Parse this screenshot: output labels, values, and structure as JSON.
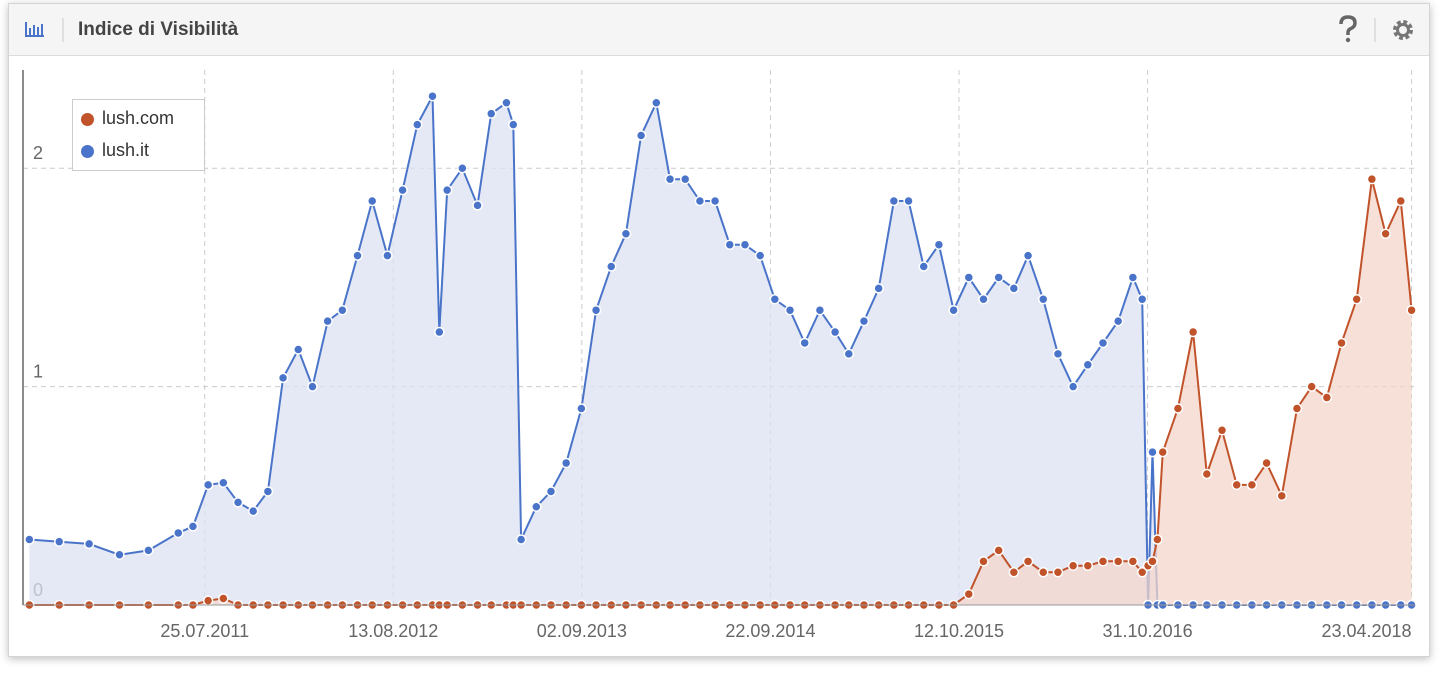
{
  "chart_data": {
    "type": "area",
    "title": "Indice di Visibilità",
    "x": [
      "01.08.2010",
      "01.10.2010",
      "01.12.2010",
      "01.02.2011",
      "01.04.2011",
      "01.06.2011",
      "01.07.2011",
      "01.08.2011",
      "01.09.2011",
      "01.10.2011",
      "01.11.2011",
      "01.12.2011",
      "01.01.2012",
      "01.02.2012",
      "01.03.2012",
      "01.04.2012",
      "01.05.2012",
      "01.06.2012",
      "01.07.2012",
      "01.08.2012",
      "01.09.2012",
      "01.10.2012",
      "01.11.2012",
      "15.11.2012",
      "01.12.2012",
      "01.01.2013",
      "01.02.2013",
      "01.03.2013",
      "01.04.2013",
      "15.04.2013",
      "01.05.2013",
      "01.06.2013",
      "01.07.2013",
      "01.08.2013",
      "01.09.2013",
      "01.10.2013",
      "01.11.2013",
      "01.12.2013",
      "01.01.2014",
      "01.02.2014",
      "01.03.2014",
      "01.04.2014",
      "01.05.2014",
      "01.06.2014",
      "01.07.2014",
      "01.08.2014",
      "01.09.2014",
      "01.10.2014",
      "01.11.2014",
      "01.12.2014",
      "01.01.2015",
      "01.02.2015",
      "01.03.2015",
      "01.04.2015",
      "01.05.2015",
      "01.06.2015",
      "01.07.2015",
      "01.08.2015",
      "01.09.2015",
      "01.10.2015",
      "01.11.2015",
      "01.12.2015",
      "01.01.2016",
      "01.02.2016",
      "01.03.2016",
      "01.04.2016",
      "01.05.2016",
      "01.06.2016",
      "01.07.2016",
      "01.08.2016",
      "01.09.2016",
      "01.10.2016",
      "20.10.2016",
      "01.11.2016",
      "10.11.2016",
      "20.11.2016",
      "01.12.2016",
      "01.01.2017",
      "01.02.2017",
      "01.03.2017",
      "01.04.2017",
      "01.05.2017",
      "01.06.2017",
      "01.07.2017",
      "01.08.2017",
      "01.09.2017",
      "01.10.2017",
      "01.11.2017",
      "01.12.2017",
      "01.01.2018",
      "01.02.2018",
      "01.03.2018",
      "01.04.2018",
      "23.04.2018"
    ],
    "series": [
      {
        "name": "lush.com",
        "color": "#c1532b",
        "fill": "#f3d6cb",
        "values": [
          0,
          0,
          0,
          0,
          0,
          0,
          0,
          0.02,
          0.03,
          0,
          0,
          0,
          0,
          0,
          0,
          0,
          0,
          0,
          0,
          0,
          0,
          0,
          0,
          0,
          0,
          0,
          0,
          0,
          0,
          0,
          0,
          0,
          0,
          0,
          0,
          0,
          0,
          0,
          0,
          0,
          0,
          0,
          0,
          0,
          0,
          0,
          0,
          0,
          0,
          0,
          0,
          0,
          0,
          0,
          0,
          0,
          0,
          0,
          0,
          0,
          0.05,
          0.2,
          0.25,
          0.15,
          0.2,
          0.15,
          0.15,
          0.18,
          0.18,
          0.2,
          0.2,
          0.2,
          0.15,
          0.18,
          0.2,
          0.3,
          0.7,
          0.9,
          1.25,
          0.6,
          0.8,
          0.55,
          0.55,
          0.65,
          0.5,
          0.9,
          1.0,
          0.95,
          1.2,
          1.4,
          1.95,
          1.7,
          1.85,
          1.35
        ]
      },
      {
        "name": "lush.it",
        "color": "#4a74c9",
        "fill": "#dce2f2",
        "values": [
          0.3,
          0.29,
          0.28,
          0.23,
          0.25,
          0.33,
          0.36,
          0.55,
          0.56,
          0.47,
          0.43,
          0.52,
          1.04,
          1.17,
          1.0,
          1.3,
          1.35,
          1.6,
          1.85,
          1.6,
          1.9,
          2.2,
          2.33,
          1.25,
          1.9,
          2.0,
          1.83,
          2.25,
          2.3,
          2.2,
          0.3,
          0.45,
          0.52,
          0.65,
          0.9,
          1.35,
          1.55,
          1.7,
          2.15,
          2.3,
          1.95,
          1.95,
          1.85,
          1.85,
          1.65,
          1.65,
          1.6,
          1.4,
          1.35,
          1.2,
          1.35,
          1.25,
          1.15,
          1.3,
          1.45,
          1.85,
          1.85,
          1.55,
          1.65,
          1.35,
          1.5,
          1.4,
          1.5,
          1.45,
          1.6,
          1.4,
          1.15,
          1.0,
          1.1,
          1.2,
          1.3,
          1.5,
          1.4,
          0,
          0.7,
          0,
          0,
          0,
          0,
          0,
          0,
          0,
          0,
          0,
          0,
          0,
          0,
          0,
          0,
          0,
          0,
          0,
          0,
          0
        ]
      }
    ],
    "xlim": [
      "19.07.2010",
      "30.04.2018"
    ],
    "xticks": [
      "25.07.2011",
      "13.08.2012",
      "02.09.2013",
      "22.09.2014",
      "12.10.2015",
      "31.10.2016",
      "23.04.2018"
    ],
    "ylim": [
      0,
      2.45
    ],
    "yticks": [
      0,
      1,
      2
    ],
    "grid": true,
    "legend": "upper-left"
  }
}
